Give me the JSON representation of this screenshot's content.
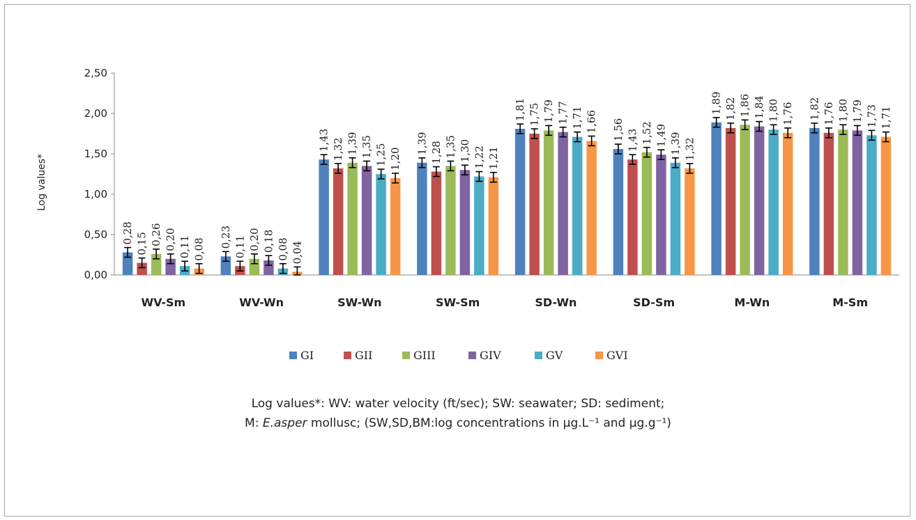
{
  "chart_data": {
    "type": "bar",
    "ylabel": "Log values*",
    "ylim": [
      0,
      2.5
    ],
    "yticks": [
      "0,00",
      "0,50",
      "1,00",
      "1,50",
      "2,00",
      "2,50"
    ],
    "categories": [
      "WV-Sm",
      "WV-Wn",
      "SW-Wn",
      "SW-Sm",
      "SD-Wn",
      "SD-Sm",
      "M-Wn",
      "M-Sm"
    ],
    "series": [
      {
        "name": "GI",
        "color": "#4f81bd",
        "values": [
          0.28,
          0.23,
          1.43,
          1.39,
          1.81,
          1.56,
          1.89,
          1.82
        ],
        "labels": [
          "0,28",
          "0,23",
          "1,43",
          "1,39",
          "1,81",
          "1,56",
          "1,89",
          "1,82"
        ]
      },
      {
        "name": "GII",
        "color": "#c0504d",
        "values": [
          0.15,
          0.11,
          1.32,
          1.28,
          1.75,
          1.43,
          1.82,
          1.76
        ],
        "labels": [
          "0,15",
          "0,11",
          "1,32",
          "1,28",
          "1,75",
          "1,43",
          "1,82",
          "1,76"
        ]
      },
      {
        "name": "GIII",
        "color": "#9bbb59",
        "values": [
          0.26,
          0.2,
          1.39,
          1.35,
          1.79,
          1.52,
          1.86,
          1.8
        ],
        "labels": [
          "0,26",
          "0,20",
          "1,39",
          "1,35",
          "1,79",
          "1,52",
          "1,86",
          "1,80"
        ]
      },
      {
        "name": "GIV",
        "color": "#8064a2",
        "values": [
          0.2,
          0.18,
          1.35,
          1.3,
          1.77,
          1.49,
          1.84,
          1.79
        ],
        "labels": [
          "0,20",
          "0,18",
          "1,35",
          "1,30",
          "1,77",
          "1,49",
          "1,84",
          "1,79"
        ]
      },
      {
        "name": "GV",
        "color": "#4bacc6",
        "values": [
          0.11,
          0.08,
          1.25,
          1.22,
          1.71,
          1.39,
          1.8,
          1.73
        ],
        "labels": [
          "0,11",
          "0,08",
          "1,25",
          "1,22",
          "1,71",
          "1,39",
          "1,80",
          "1,73"
        ]
      },
      {
        "name": "GVI",
        "color": "#f79646",
        "values": [
          0.08,
          0.04,
          1.2,
          1.21,
          1.66,
          1.32,
          1.76,
          1.71
        ],
        "labels": [
          "0,08",
          "0,04",
          "1,20",
          "1,21",
          "1,66",
          "1,32",
          "1,76",
          "1,71"
        ]
      }
    ],
    "error_bar": 0.06,
    "legend_position": "bottom",
    "grid": false
  },
  "caption": {
    "line1": "Log values*: WV: water velocity (ft/sec); SW: seawater; SD: sediment;",
    "line2_prefix": "M: ",
    "line2_species": "E.asper",
    "line2_rest": " mollusc; (SW,SD,BM:log concentrations in µg.L⁻¹ and µg.g⁻¹)"
  }
}
